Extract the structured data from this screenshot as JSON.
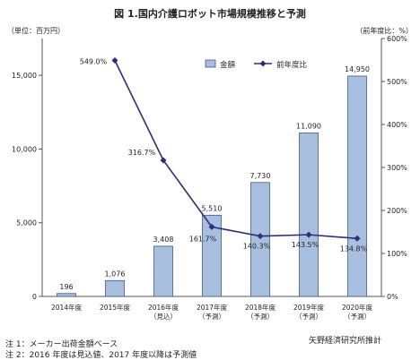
{
  "chart_data": {
    "type": "bar",
    "title": "図 1.国内介護ロボット市場規模推移と予測",
    "left_axis_label": "（単位：百万円）",
    "right_axis_label": "（前年度比：%）",
    "categories": [
      [
        "2014年度"
      ],
      [
        "2015年度"
      ],
      [
        "2016年度",
        "（見込）"
      ],
      [
        "2017年度",
        "（予測）"
      ],
      [
        "2018年度",
        "（予測）"
      ],
      [
        "2019年度",
        "（予測）"
      ],
      [
        "2020年度",
        "（予測）"
      ]
    ],
    "series": [
      {
        "name": "金額",
        "type": "bar",
        "axis": "left",
        "values": [
          196,
          1076,
          3408,
          5510,
          7730,
          11090,
          14950
        ],
        "labels": [
          "196",
          "1,076",
          "3,408",
          "5,510",
          "7,730",
          "11,090",
          "14,950"
        ]
      },
      {
        "name": "前年度比",
        "type": "line",
        "axis": "right",
        "values": [
          null,
          549.0,
          316.7,
          161.7,
          140.3,
          143.5,
          134.8
        ],
        "labels": [
          "",
          "549.0%",
          "316.7%",
          "161.7%",
          "140.3%",
          "143.5%",
          "134.8%"
        ]
      }
    ],
    "left_axis": {
      "ylim": [
        0,
        17500
      ],
      "ticks": [
        0,
        5000,
        10000,
        15000
      ],
      "tick_labels": [
        "0",
        "5,000",
        "10,000",
        "15,000"
      ]
    },
    "right_axis": {
      "ylim": [
        0,
        600
      ],
      "ticks": [
        0,
        100,
        200,
        300,
        400,
        500,
        600
      ],
      "tick_labels": [
        "0%",
        "100%",
        "200%",
        "300%",
        "400%",
        "500%",
        "600%"
      ]
    },
    "legend_position": "top-right",
    "grid": false,
    "colors": {
      "bar": "#A9BFE0",
      "bar_edge": "#3E5A8A",
      "line": "#2B2E7A",
      "axis": "#555555"
    }
  },
  "notes": {
    "note1": "注 1：メーカー出荷金額ベース",
    "note2": "注 2：2016 年度は見込値、2017 年度以降は予測値",
    "source": "矢野経済研究所推計"
  }
}
